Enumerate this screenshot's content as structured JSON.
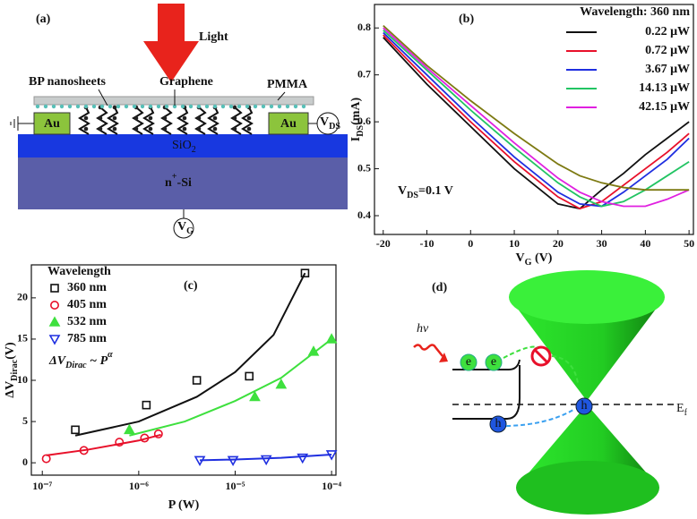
{
  "panel_a": {
    "label": "(a)",
    "light": "Light",
    "bp": "BP nanosheets",
    "graphene": "Graphene",
    "pmma": "PMMA",
    "au_left": "Au",
    "au_right": "Au",
    "sio2": {
      "base": "SiO",
      "sub": "2"
    },
    "si": {
      "base": "n",
      "sup": "+",
      "after": "-Si"
    },
    "vds": {
      "base": "V",
      "sub": "DS"
    },
    "vg": {
      "base": "V",
      "sub": "G"
    }
  },
  "panel_d": {
    "label": "(d)",
    "hv": "hν",
    "electrons": [
      "e",
      "e"
    ],
    "holes": [
      "h",
      "h"
    ],
    "ef": {
      "base": "E",
      "sub": "f"
    }
  },
  "chart_data": [
    {
      "type": "line",
      "label": "(b)",
      "xlabel": {
        "base": "V",
        "sub": "G",
        "after": " (V)"
      },
      "ylabel": {
        "base": "I",
        "sub": "DS",
        "after": "(mA)"
      },
      "annotation": {
        "base": "V",
        "sub": "DS",
        "after": "=0.1 V"
      },
      "legend_title": "Wavelength: 360 nm",
      "legend": "upper right",
      "x": [
        -20,
        -10,
        0,
        10,
        20,
        25,
        30,
        35,
        40,
        45,
        50
      ],
      "xlim": [
        -22,
        51
      ],
      "xticks": [
        -20,
        -10,
        0,
        10,
        20,
        30,
        40,
        50
      ],
      "ylim": [
        0.36,
        0.85
      ],
      "yticks": [
        0.4,
        0.5,
        0.6,
        0.7,
        0.8
      ],
      "series": [
        {
          "name": "0.22 μW",
          "color": "#111111",
          "values": [
            0.78,
            0.68,
            0.59,
            0.5,
            0.425,
            0.415,
            0.455,
            0.49,
            0.53,
            0.565,
            0.6
          ]
        },
        {
          "name": "0.72 μW",
          "color": "#e8102a",
          "values": [
            0.785,
            0.69,
            0.6,
            0.515,
            0.44,
            0.415,
            0.43,
            0.465,
            0.5,
            0.535,
            0.575
          ]
        },
        {
          "name": "3.67 μW",
          "color": "#1f2fe0",
          "values": [
            0.79,
            0.7,
            0.61,
            0.525,
            0.45,
            0.425,
            0.42,
            0.45,
            0.485,
            0.52,
            0.565
          ]
        },
        {
          "name": "14.13 μW",
          "color": "#22c463",
          "values": [
            0.795,
            0.71,
            0.625,
            0.545,
            0.47,
            0.44,
            0.42,
            0.43,
            0.455,
            0.485,
            0.515
          ]
        },
        {
          "name": "42.15 μW",
          "color": "#e020e0",
          "values": [
            0.8,
            0.715,
            0.635,
            0.555,
            0.48,
            0.45,
            0.43,
            0.42,
            0.42,
            0.435,
            0.455
          ]
        },
        {
          "color": "#7d7a12",
          "values": [
            0.805,
            0.72,
            0.645,
            0.575,
            0.51,
            0.485,
            0.47,
            0.46,
            0.455,
            0.455,
            0.455
          ]
        }
      ]
    },
    {
      "type": "scatter",
      "label": "(c)",
      "xscale": "log",
      "xlabel": "P (W)",
      "ylabel": {
        "base": "ΔV",
        "sub": "Dirac",
        "after": "(V)"
      },
      "annotation": {
        "base": "ΔV",
        "sub": "Dirac",
        "after": " ~ P",
        "sup": "α"
      },
      "legend_title": "Wavelength",
      "legend": "upper left",
      "xlim": [
        7.7e-08,
        0.000111
      ],
      "xticks": [
        {
          "value": 1e-07,
          "label": "10⁻⁷"
        },
        {
          "value": 1e-06,
          "label": "10⁻⁶"
        },
        {
          "value": 1e-05,
          "label": "10⁻⁵"
        },
        {
          "value": 0.0001,
          "label": "10⁻⁴"
        }
      ],
      "ylim": [
        -1.5,
        24
      ],
      "yticks": [
        0,
        5,
        10,
        15,
        20
      ],
      "series": [
        {
          "name": "360 nm",
          "color": "#111111",
          "marker": "square",
          "filled": false,
          "x": [
            2.2e-07,
            1.2e-06,
            4e-06,
            1.4e-05,
            5.3e-05
          ],
          "values": [
            4,
            7,
            10,
            10.5,
            23
          ],
          "fit_x": [
            2.2e-07,
            1e-06,
            4e-06,
            1e-05,
            2.5e-05,
            5.3e-05
          ],
          "fit_y": [
            3.3,
            5,
            8,
            11,
            15.5,
            23
          ]
        },
        {
          "name": "405 nm",
          "color": "#e8102a",
          "marker": "circle",
          "filled": false,
          "x": [
            1.1e-07,
            2.7e-07,
            6.3e-07,
            1.15e-06,
            1.6e-06
          ],
          "values": [
            0.5,
            1.5,
            2.5,
            3,
            3.5
          ],
          "fit_x": [
            1.1e-07,
            3e-07,
            1e-06,
            1.7e-06
          ],
          "fit_y": [
            0.9,
            1.6,
            2.7,
            3.4
          ]
        },
        {
          "name": "532 nm",
          "color": "#3ee03e",
          "marker": "triangle-up",
          "filled": true,
          "x": [
            8e-07,
            1.6e-05,
            3e-05,
            6.5e-05,
            0.0001
          ],
          "values": [
            4,
            8,
            9.5,
            13.5,
            15
          ],
          "fit_x": [
            8e-07,
            3e-06,
            1e-05,
            3e-05,
            0.0001
          ],
          "fit_y": [
            3.3,
            5,
            7.5,
            10.3,
            15
          ]
        },
        {
          "name": "785 nm",
          "color": "#1f2fe0",
          "marker": "triangle-down",
          "filled": false,
          "x": [
            4.3e-06,
            9.5e-06,
            2.1e-05,
            5e-05,
            0.0001
          ],
          "values": [
            0.3,
            0.3,
            0.4,
            0.6,
            1
          ],
          "fit_x": [
            4.3e-06,
            1e-05,
            3e-05,
            0.0001
          ],
          "fit_y": [
            0.3,
            0.4,
            0.6,
            1
          ]
        }
      ]
    }
  ]
}
